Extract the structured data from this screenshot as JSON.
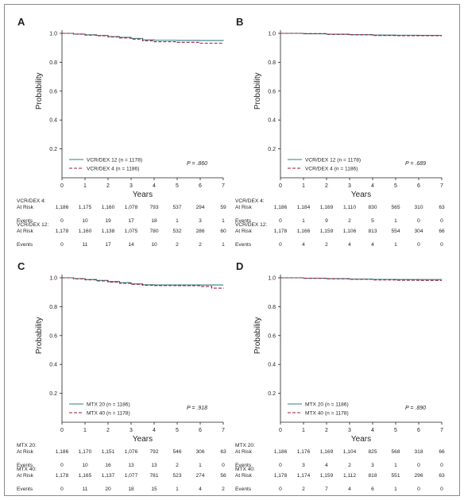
{
  "chart_data": [
    {
      "panel": "A",
      "type": "line",
      "ylabel": "Probability",
      "xlabel": "Years",
      "xlim": [
        0,
        7
      ],
      "ylim": [
        0,
        1.0
      ],
      "x_ticks": [
        "0",
        "1",
        "2",
        "3",
        "4",
        "5",
        "6",
        "7"
      ],
      "y_ticks": [
        "0.2",
        "0.4",
        "0.6",
        "0.8",
        "1.0"
      ],
      "p_value": "P = .860",
      "legend_position": "bottom-left",
      "series": [
        {
          "name": "VCR/DEX 12 (n = 1178)",
          "color": "#2f7f8a",
          "dash": false,
          "points": [
            [
              0,
              1.0
            ],
            [
              0.5,
              0.995
            ],
            [
              1,
              0.99
            ],
            [
              1.5,
              0.985
            ],
            [
              2,
              0.978
            ],
            [
              2.5,
              0.972
            ],
            [
              3,
              0.965
            ],
            [
              3.5,
              0.955
            ],
            [
              4,
              0.952
            ],
            [
              5,
              0.951
            ],
            [
              6,
              0.95
            ],
            [
              7,
              0.948
            ]
          ]
        },
        {
          "name": "VCR/DEX 4 (n = 1186)",
          "color": "#9b1c3a",
          "dash": true,
          "points": [
            [
              0,
              1.0
            ],
            [
              0.5,
              0.994
            ],
            [
              1,
              0.988
            ],
            [
              1.5,
              0.983
            ],
            [
              2,
              0.975
            ],
            [
              2.5,
              0.968
            ],
            [
              3,
              0.96
            ],
            [
              3.5,
              0.948
            ],
            [
              4,
              0.942
            ],
            [
              5,
              0.938
            ],
            [
              6,
              0.932
            ],
            [
              7,
              0.93
            ]
          ]
        }
      ],
      "risk_table": [
        {
          "label": "VCR/DEX 4:",
          "sublabel": "At Risk",
          "values": [
            "1,186",
            "1,175",
            "1,160",
            "1,078",
            "793",
            "537",
            "294",
            "59"
          ]
        },
        {
          "label": "Events",
          "sublabel": "",
          "values": [
            "0",
            "10",
            "19",
            "17",
            "18",
            "1",
            "3",
            "1"
          ]
        },
        {
          "label": "VCR/DEX 12:",
          "sublabel": "At Risk",
          "values": [
            "1,178",
            "1,160",
            "1,138",
            "1,075",
            "780",
            "532",
            "286",
            "60"
          ]
        },
        {
          "label": "Events",
          "sublabel": "",
          "values": [
            "0",
            "11",
            "17",
            "14",
            "10",
            "2",
            "2",
            "1"
          ]
        }
      ]
    },
    {
      "panel": "B",
      "type": "line",
      "ylabel": "Probability",
      "xlabel": "Years",
      "xlim": [
        0,
        7
      ],
      "ylim": [
        0,
        1.0
      ],
      "x_ticks": [
        "0",
        "1",
        "2",
        "3",
        "4",
        "5",
        "6",
        "7"
      ],
      "y_ticks": [
        "0.2",
        "0.4",
        "0.6",
        "0.8",
        "1.0"
      ],
      "p_value": "P = .689",
      "legend_position": "bottom-left",
      "series": [
        {
          "name": "VCR/DEX 12 (n = 1178)",
          "color": "#2f7f8a",
          "dash": false,
          "points": [
            [
              0,
              1.0
            ],
            [
              1,
              0.997
            ],
            [
              2,
              0.994
            ],
            [
              3,
              0.991
            ],
            [
              4,
              0.988
            ],
            [
              5,
              0.987
            ],
            [
              6,
              0.986
            ],
            [
              7,
              0.986
            ]
          ]
        },
        {
          "name": "VCR/DEX 4 (n = 1186)",
          "color": "#9b1c3a",
          "dash": true,
          "points": [
            [
              0,
              1.0
            ],
            [
              1,
              0.998
            ],
            [
              2,
              0.993
            ],
            [
              3,
              0.99
            ],
            [
              4,
              0.985
            ],
            [
              5,
              0.984
            ],
            [
              6,
              0.984
            ],
            [
              7,
              0.984
            ]
          ]
        }
      ],
      "risk_table": [
        {
          "label": "VCR/DEX 4:",
          "sublabel": "At Risk",
          "values": [
            "1,186",
            "1,184",
            "1,169",
            "1,110",
            "830",
            "565",
            "310",
            "63"
          ]
        },
        {
          "label": "Events",
          "sublabel": "",
          "values": [
            "0",
            "1",
            "9",
            "2",
            "5",
            "1",
            "0",
            "0"
          ]
        },
        {
          "label": "VCR/DEX 12:",
          "sublabel": "At Risk",
          "values": [
            "1,178",
            "1,166",
            "1,159",
            "1,106",
            "813",
            "554",
            "304",
            "66"
          ]
        },
        {
          "label": "Events",
          "sublabel": "",
          "values": [
            "0",
            "4",
            "2",
            "4",
            "4",
            "1",
            "0",
            "0"
          ]
        }
      ]
    },
    {
      "panel": "C",
      "type": "line",
      "ylabel": "Probability",
      "xlabel": "Years",
      "xlim": [
        0,
        7
      ],
      "ylim": [
        0,
        1.0
      ],
      "x_ticks": [
        "0",
        "1",
        "2",
        "3",
        "4",
        "5",
        "6",
        "7"
      ],
      "y_ticks": [
        "0.2",
        "0.4",
        "0.6",
        "0.8",
        "1.0"
      ],
      "p_value": "P = .918",
      "legend_position": "bottom-left",
      "series": [
        {
          "name": "MTX 20 (n = 1186)",
          "color": "#2f7f8a",
          "dash": false,
          "points": [
            [
              0,
              1.0
            ],
            [
              0.5,
              0.994
            ],
            [
              1,
              0.988
            ],
            [
              1.5,
              0.982
            ],
            [
              2,
              0.974
            ],
            [
              2.5,
              0.966
            ],
            [
              3,
              0.958
            ],
            [
              3.5,
              0.952
            ],
            [
              4,
              0.95
            ],
            [
              5,
              0.95
            ],
            [
              6,
              0.95
            ],
            [
              6.5,
              0.95
            ],
            [
              7,
              0.95
            ]
          ]
        },
        {
          "name": "MTX 40 (n = 1178)",
          "color": "#9b1c3a",
          "dash": true,
          "points": [
            [
              0,
              1.0
            ],
            [
              0.5,
              0.993
            ],
            [
              1,
              0.986
            ],
            [
              1.5,
              0.978
            ],
            [
              2,
              0.97
            ],
            [
              2.5,
              0.962
            ],
            [
              3,
              0.955
            ],
            [
              3.5,
              0.948
            ],
            [
              4,
              0.946
            ],
            [
              5,
              0.945
            ],
            [
              6,
              0.94
            ],
            [
              6.5,
              0.928
            ],
            [
              7,
              0.926
            ]
          ]
        }
      ],
      "risk_table": [
        {
          "label": "MTX 20:",
          "sublabel": "At Risk",
          "values": [
            "1,186",
            "1,170",
            "1,151",
            "1,076",
            "792",
            "546",
            "306",
            "63"
          ]
        },
        {
          "label": "Events",
          "sublabel": "",
          "values": [
            "0",
            "10",
            "16",
            "13",
            "13",
            "2",
            "1",
            "0"
          ]
        },
        {
          "label": "MTX 40:",
          "sublabel": "At Risk",
          "values": [
            "1,178",
            "1,165",
            "1,137",
            "1,077",
            "781",
            "523",
            "274",
            "56"
          ]
        },
        {
          "label": "Events",
          "sublabel": "",
          "values": [
            "0",
            "11",
            "20",
            "18",
            "15",
            "1",
            "4",
            "2"
          ]
        }
      ]
    },
    {
      "panel": "D",
      "type": "line",
      "ylabel": "Probability",
      "xlabel": "Years",
      "xlim": [
        0,
        7
      ],
      "ylim": [
        0,
        1.0
      ],
      "x_ticks": [
        "0",
        "1",
        "2",
        "3",
        "4",
        "5",
        "6",
        "7"
      ],
      "y_ticks": [
        "0.2",
        "0.4",
        "0.6",
        "0.8",
        "1.0"
      ],
      "p_value": "P = .890",
      "legend_position": "bottom-left",
      "series": [
        {
          "name": "MTX 20 (n = 1186)",
          "color": "#2f7f8a",
          "dash": false,
          "points": [
            [
              0,
              1.0
            ],
            [
              1,
              0.997
            ],
            [
              2,
              0.994
            ],
            [
              3,
              0.991
            ],
            [
              4,
              0.989
            ],
            [
              5,
              0.988
            ],
            [
              6,
              0.988
            ],
            [
              7,
              0.988
            ]
          ]
        },
        {
          "name": "MTX 40 (n = 1178)",
          "color": "#9b1c3a",
          "dash": true,
          "points": [
            [
              0,
              1.0
            ],
            [
              1,
              0.997
            ],
            [
              2,
              0.993
            ],
            [
              3,
              0.989
            ],
            [
              4,
              0.985
            ],
            [
              5,
              0.983
            ],
            [
              6,
              0.982
            ],
            [
              7,
              0.982
            ]
          ]
        }
      ],
      "risk_table": [
        {
          "label": "MTX 20:",
          "sublabel": "At Risk",
          "values": [
            "1,186",
            "1,176",
            "1,169",
            "1,104",
            "825",
            "568",
            "318",
            "66"
          ]
        },
        {
          "label": "Events",
          "sublabel": "",
          "values": [
            "0",
            "3",
            "4",
            "2",
            "3",
            "1",
            "0",
            "0"
          ]
        },
        {
          "label": "MTX 40:",
          "sublabel": "At Risk",
          "values": [
            "1,178",
            "1,174",
            "1,159",
            "1,112",
            "818",
            "551",
            "296",
            "63"
          ]
        },
        {
          "label": "Events",
          "sublabel": "",
          "values": [
            "0",
            "2",
            "7",
            "4",
            "6",
            "1",
            "0",
            "0"
          ]
        }
      ]
    }
  ]
}
